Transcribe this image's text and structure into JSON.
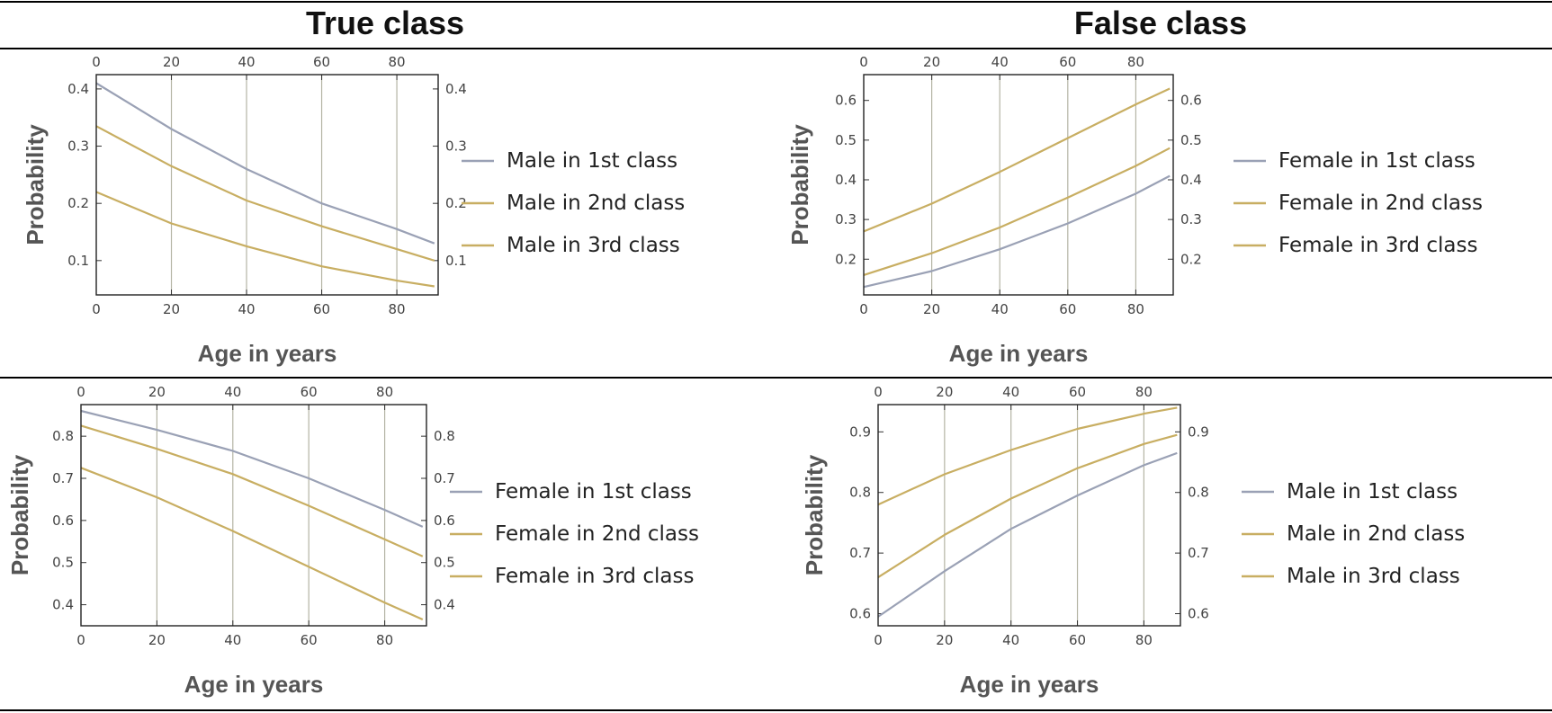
{
  "columns": {
    "left": "True class",
    "right": "False class"
  },
  "colors": {
    "series1": "#9aa1b5",
    "series2": "#c8ae62",
    "series3": "#c8ae62",
    "frame": "#222222",
    "grid": "#b4b4a4"
  },
  "chart_data": [
    {
      "type": "line",
      "xlabel": "Age in years",
      "ylabel": "Probability",
      "xlim": [
        0,
        91
      ],
      "ylim": [
        0.04,
        0.425
      ],
      "xticks": [
        0,
        20,
        40,
        60,
        80
      ],
      "yticks": [
        0.1,
        0.2,
        0.3,
        0.4
      ],
      "grid_x": [
        20,
        40,
        60,
        80
      ],
      "legend_position": "right",
      "series": [
        {
          "name": "Male in 1st class",
          "color": "#9aa1b5",
          "x": [
            0,
            20,
            40,
            60,
            80,
            90
          ],
          "y": [
            0.41,
            0.33,
            0.26,
            0.2,
            0.155,
            0.13
          ]
        },
        {
          "name": "Male in 2nd class",
          "color": "#c8ae62",
          "x": [
            0,
            20,
            40,
            60,
            80,
            90
          ],
          "y": [
            0.335,
            0.265,
            0.205,
            0.16,
            0.12,
            0.1
          ]
        },
        {
          "name": "Male in 3rd class",
          "color": "#c8ae62",
          "x": [
            0,
            20,
            40,
            60,
            80,
            90
          ],
          "y": [
            0.22,
            0.165,
            0.125,
            0.09,
            0.065,
            0.055
          ]
        }
      ]
    },
    {
      "type": "line",
      "xlabel": "Age in years",
      "ylabel": "Probability",
      "xlim": [
        0,
        91
      ],
      "ylim": [
        0.11,
        0.665
      ],
      "xticks": [
        0,
        20,
        40,
        60,
        80
      ],
      "yticks": [
        0.2,
        0.3,
        0.4,
        0.5,
        0.6
      ],
      "grid_x": [
        20,
        40,
        60,
        80
      ],
      "legend_position": "right",
      "series": [
        {
          "name": "Female in 1st class",
          "color": "#9aa1b5",
          "x": [
            0,
            20,
            40,
            60,
            80,
            90
          ],
          "y": [
            0.13,
            0.17,
            0.225,
            0.29,
            0.365,
            0.41
          ]
        },
        {
          "name": "Female in 2nd class",
          "color": "#c8ae62",
          "x": [
            0,
            20,
            40,
            60,
            80,
            90
          ],
          "y": [
            0.16,
            0.215,
            0.28,
            0.355,
            0.435,
            0.48
          ]
        },
        {
          "name": "Female in 3rd class",
          "color": "#c8ae62",
          "x": [
            0,
            20,
            40,
            60,
            80,
            90
          ],
          "y": [
            0.27,
            0.34,
            0.42,
            0.505,
            0.59,
            0.63
          ]
        }
      ]
    },
    {
      "type": "line",
      "xlabel": "Age in years",
      "ylabel": "Probability",
      "xlim": [
        0,
        91
      ],
      "ylim": [
        0.35,
        0.875
      ],
      "xticks": [
        0,
        20,
        40,
        60,
        80
      ],
      "yticks": [
        0.4,
        0.5,
        0.6,
        0.7,
        0.8
      ],
      "grid_x": [
        20,
        40,
        60,
        80
      ],
      "legend_position": "right",
      "series": [
        {
          "name": "Female in 1st class",
          "color": "#9aa1b5",
          "x": [
            0,
            20,
            40,
            60,
            80,
            90
          ],
          "y": [
            0.86,
            0.815,
            0.765,
            0.7,
            0.625,
            0.585
          ]
        },
        {
          "name": "Female in 2nd class",
          "color": "#c8ae62",
          "x": [
            0,
            20,
            40,
            60,
            80,
            90
          ],
          "y": [
            0.825,
            0.77,
            0.71,
            0.635,
            0.555,
            0.515
          ]
        },
        {
          "name": "Female in 3rd class",
          "color": "#c8ae62",
          "x": [
            0,
            20,
            40,
            60,
            80,
            90
          ],
          "y": [
            0.725,
            0.655,
            0.575,
            0.49,
            0.405,
            0.365
          ]
        }
      ]
    },
    {
      "type": "line",
      "xlabel": "Age in years",
      "ylabel": "Probability",
      "xlim": [
        0,
        91
      ],
      "ylim": [
        0.58,
        0.945
      ],
      "xticks": [
        0,
        20,
        40,
        60,
        80
      ],
      "yticks": [
        0.6,
        0.7,
        0.8,
        0.9
      ],
      "grid_x": [
        20,
        40,
        60,
        80
      ],
      "legend_position": "right",
      "series": [
        {
          "name": "Male in 1st class",
          "color": "#9aa1b5",
          "x": [
            0,
            20,
            40,
            60,
            80,
            90
          ],
          "y": [
            0.595,
            0.67,
            0.74,
            0.795,
            0.845,
            0.865
          ]
        },
        {
          "name": "Male in 2nd class",
          "color": "#c8ae62",
          "x": [
            0,
            20,
            40,
            60,
            80,
            90
          ],
          "y": [
            0.66,
            0.73,
            0.79,
            0.84,
            0.88,
            0.895
          ]
        },
        {
          "name": "Male in 3rd class",
          "color": "#c8ae62",
          "x": [
            0,
            20,
            40,
            60,
            80,
            90
          ],
          "y": [
            0.78,
            0.83,
            0.87,
            0.905,
            0.93,
            0.94
          ]
        }
      ]
    }
  ]
}
